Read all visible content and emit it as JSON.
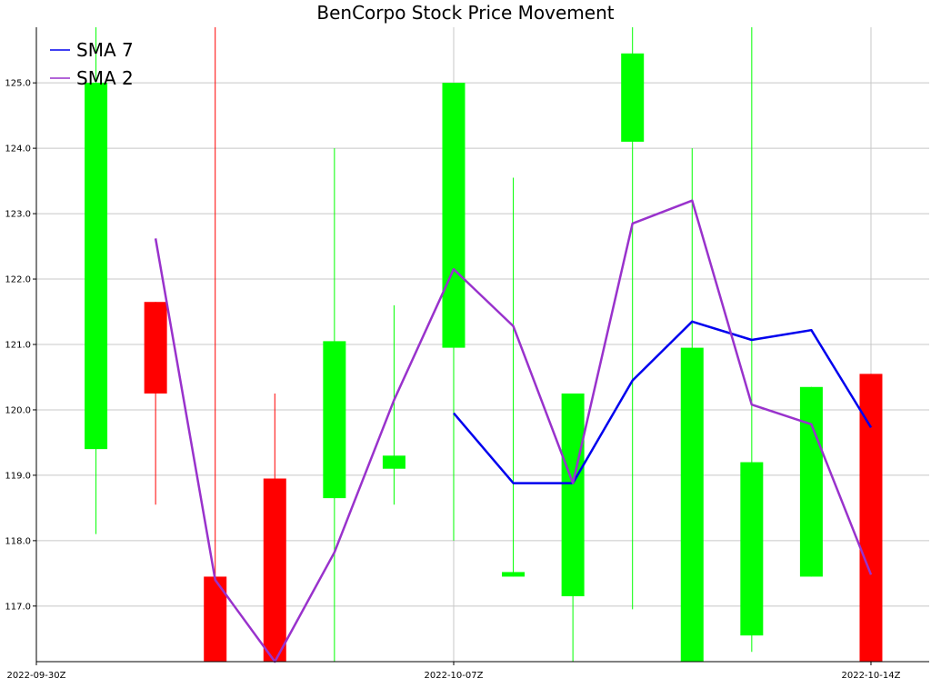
{
  "chart_data": {
    "type": "candlestick",
    "title": "BenCorpo Stock Price Movement",
    "xlabel": "",
    "ylabel": "",
    "ylim": [
      116.15,
      125.85
    ],
    "xlim": [
      0,
      14.5
    ],
    "grid": true,
    "legend_position": "top-left",
    "x_ticks": [
      {
        "x": 0,
        "label": "2022-09-30Z"
      },
      {
        "x": 7,
        "label": "2022-10-07Z"
      },
      {
        "x": 14,
        "label": "2022-10-14Z"
      }
    ],
    "y_ticks": [
      "117.0",
      "118.0",
      "119.0",
      "120.0",
      "121.0",
      "122.0",
      "123.0",
      "124.0",
      "125.0"
    ],
    "up_color": "#00ff00",
    "down_color": "#ff0000",
    "candles": [
      {
        "x": 1,
        "open": 119.4,
        "high": 125.9,
        "low": 118.1,
        "close": 125.0
      },
      {
        "x": 2,
        "open": 121.65,
        "high": 121.65,
        "low": 118.55,
        "close": 120.25
      },
      {
        "x": 3,
        "open": 117.45,
        "high": 125.9,
        "low": 116.0,
        "close": 116.1
      },
      {
        "x": 4,
        "open": 118.95,
        "high": 120.25,
        "low": 116.0,
        "close": 116.1
      },
      {
        "x": 5,
        "open": 118.65,
        "high": 124.0,
        "low": 116.0,
        "close": 121.05
      },
      {
        "x": 6,
        "open": 119.1,
        "high": 121.6,
        "low": 118.55,
        "close": 119.3
      },
      {
        "x": 7,
        "open": 120.95,
        "high": 125.0,
        "low": 118.0,
        "close": 125.0
      },
      {
        "x": 8,
        "open": 117.45,
        "high": 123.55,
        "low": 117.45,
        "close": 117.52
      },
      {
        "x": 9,
        "open": 117.15,
        "high": 120.2,
        "low": 116.0,
        "close": 120.25
      },
      {
        "x": 10,
        "open": 124.1,
        "high": 125.9,
        "low": 116.95,
        "close": 125.45
      },
      {
        "x": 11,
        "open": 116.1,
        "high": 124.0,
        "low": 116.0,
        "close": 120.95
      },
      {
        "x": 12,
        "open": 116.55,
        "high": 125.9,
        "low": 116.3,
        "close": 119.2
      },
      {
        "x": 13,
        "open": 117.45,
        "high": 120.35,
        "low": 117.45,
        "close": 120.35
      },
      {
        "x": 14,
        "open": 120.55,
        "high": 120.55,
        "low": 116.0,
        "close": 116.1
      }
    ],
    "series": [
      {
        "name": "SMA 7",
        "color": "#0000ee",
        "points": [
          {
            "x": 7,
            "y": 119.95
          },
          {
            "x": 8,
            "y": 118.88
          },
          {
            "x": 9,
            "y": 118.88
          },
          {
            "x": 10,
            "y": 120.45
          },
          {
            "x": 11,
            "y": 121.35
          },
          {
            "x": 12,
            "y": 121.07
          },
          {
            "x": 13,
            "y": 121.22
          },
          {
            "x": 14,
            "y": 119.73
          }
        ]
      },
      {
        "name": "SMA 2",
        "color": "#9932cc",
        "points": [
          {
            "x": 2,
            "y": 122.62
          },
          {
            "x": 3,
            "y": 117.4
          },
          {
            "x": 4,
            "y": 116.15
          },
          {
            "x": 5,
            "y": 117.82
          },
          {
            "x": 6,
            "y": 120.15
          },
          {
            "x": 7,
            "y": 122.15
          },
          {
            "x": 8,
            "y": 121.28
          },
          {
            "x": 9,
            "y": 118.88
          },
          {
            "x": 10,
            "y": 122.85
          },
          {
            "x": 11,
            "y": 123.2
          },
          {
            "x": 12,
            "y": 120.08
          },
          {
            "x": 13,
            "y": 119.78
          },
          {
            "x": 14,
            "y": 117.48
          }
        ]
      }
    ]
  }
}
